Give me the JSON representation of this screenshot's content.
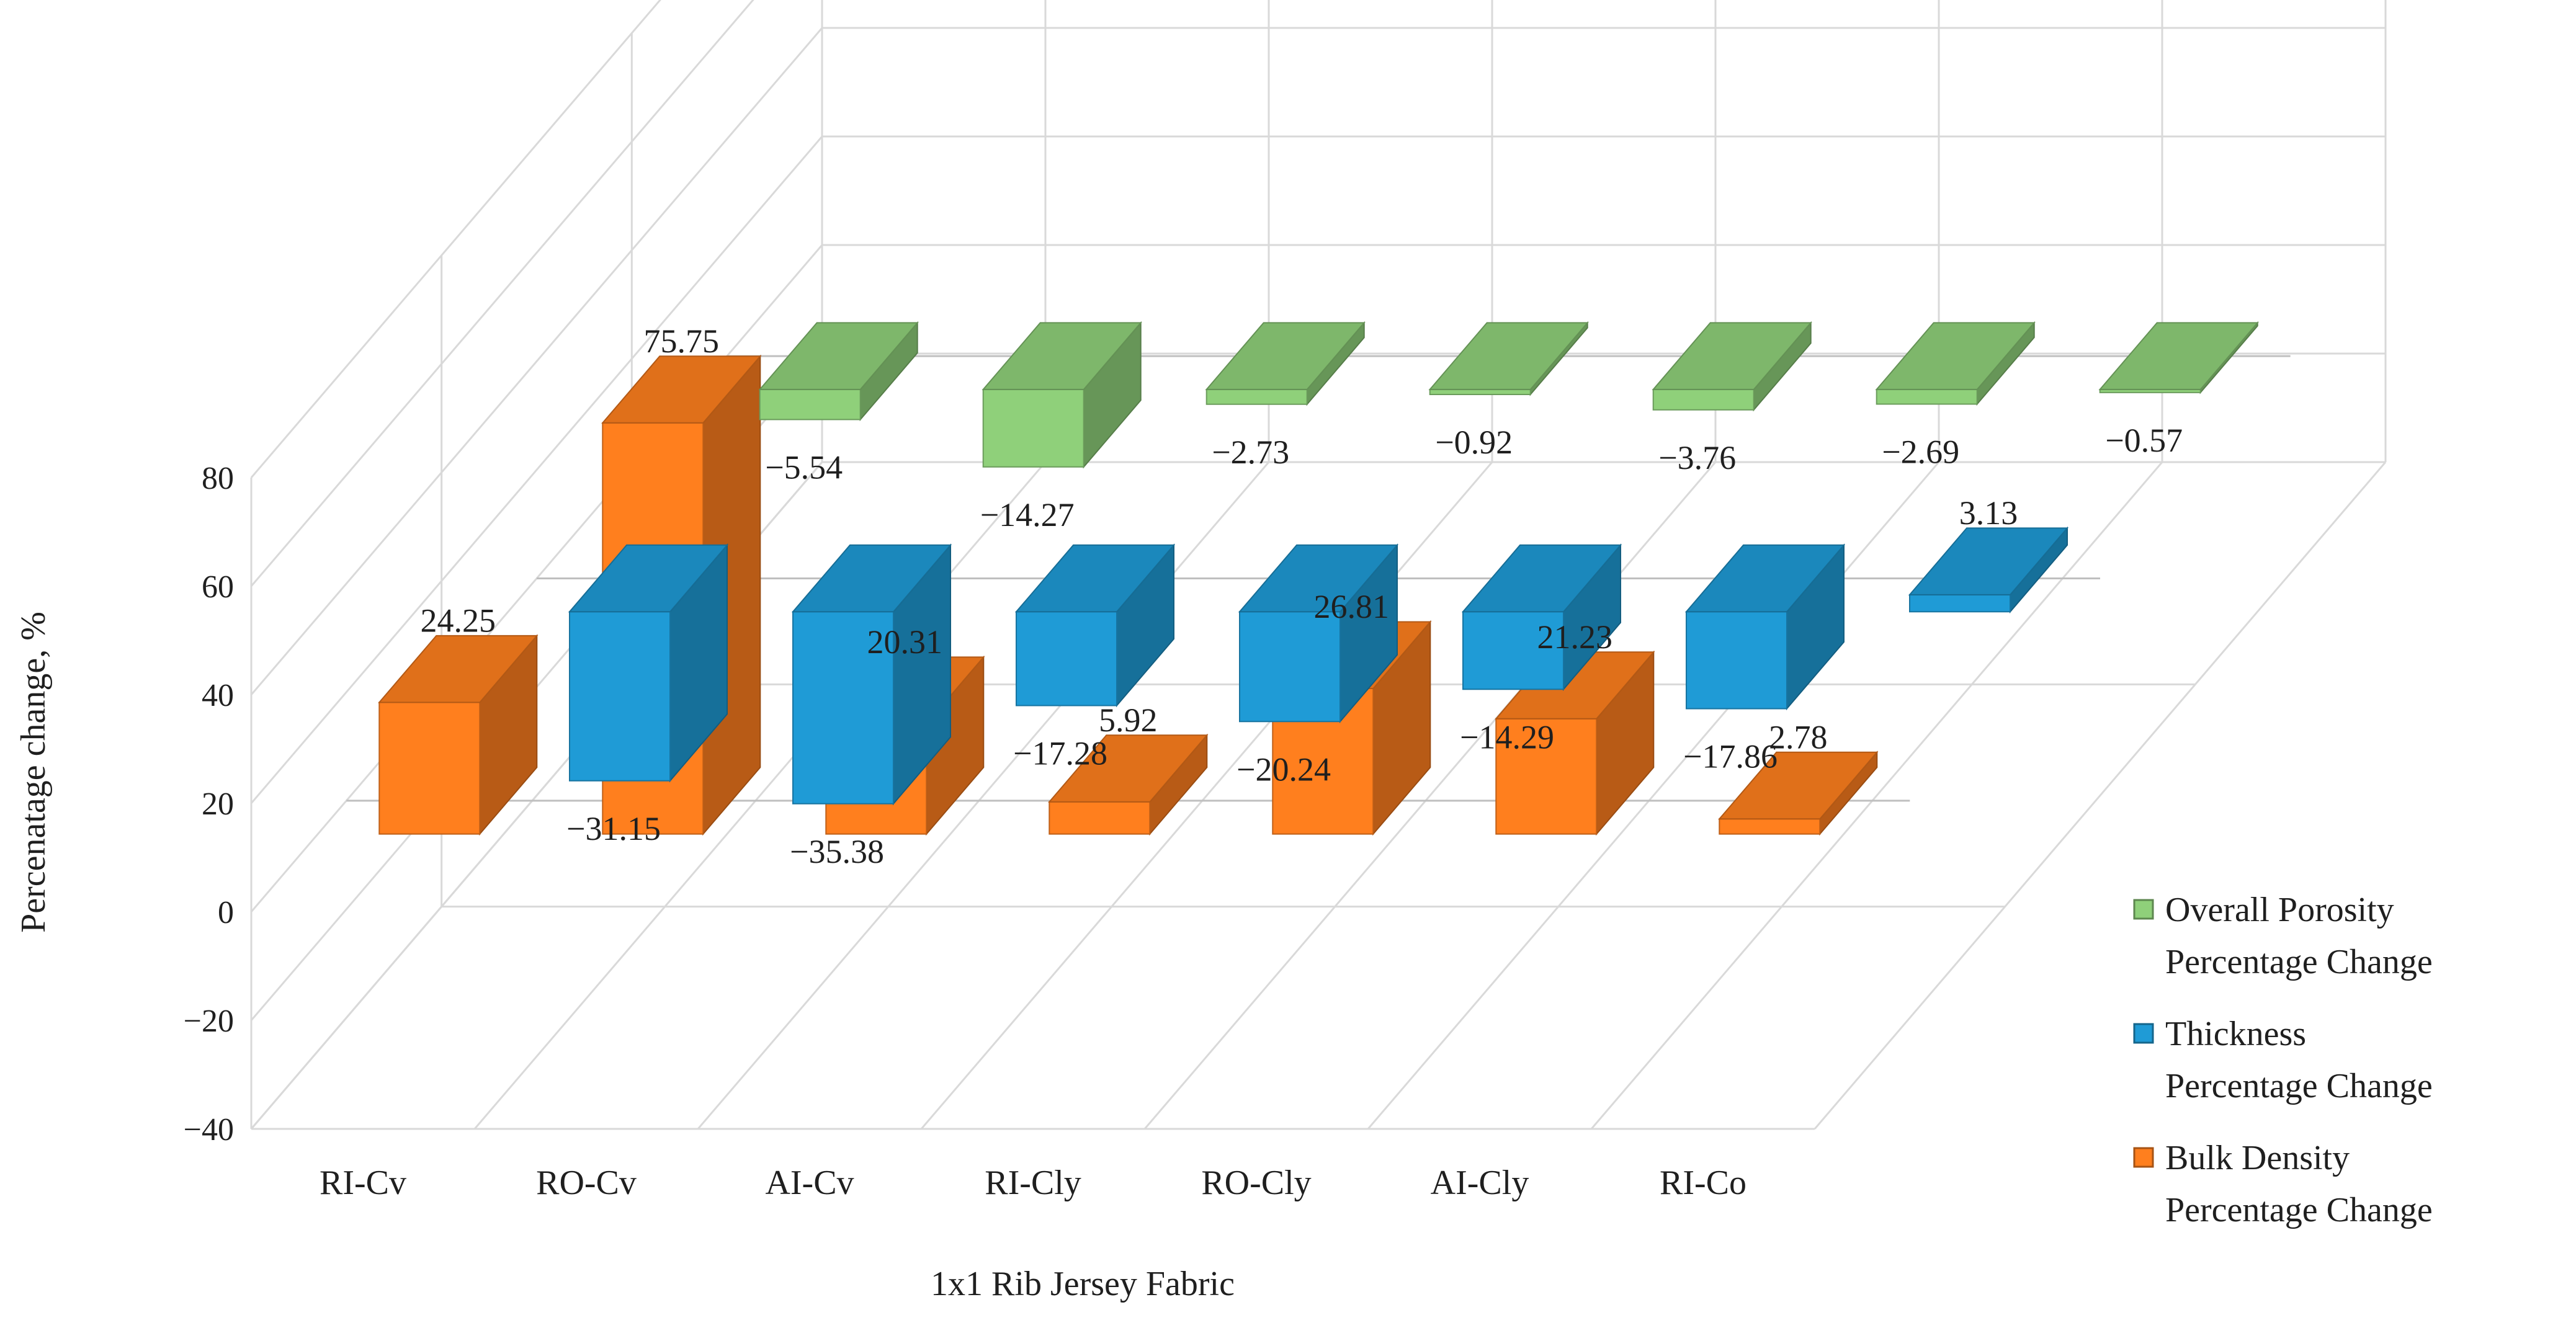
{
  "chart_data": {
    "type": "bar",
    "title": "",
    "xlabel": "1x1 Rib Jersey Fabric",
    "ylabel": "Percenatage change, %",
    "ylim": [
      -40,
      80
    ],
    "yticks": [
      -40,
      -20,
      0,
      20,
      40,
      60,
      80
    ],
    "ytick_labels": [
      "−40",
      "−20",
      "0",
      "20",
      "40",
      "60",
      "80"
    ],
    "categories": [
      "RI-Cv",
      "RO-Cv",
      "AI-Cv",
      "RI-Cly",
      "RO-Cly",
      "AI-Cly",
      "RI-Co"
    ],
    "legend_position": "right",
    "series": [
      {
        "name": "Overall Porosity Percentage Change",
        "color": "#8fd07a",
        "values": [
          -5.54,
          -14.27,
          -2.73,
          -0.92,
          -3.76,
          -2.69,
          -0.57
        ],
        "labels": [
          "−5.54",
          "−14.27",
          "−2.73",
          "−0.92",
          "−3.76",
          "−2.69",
          "−0.57"
        ]
      },
      {
        "name": "Thickness Percentage Change",
        "color": "#1f9bd6",
        "values": [
          -31.15,
          -35.38,
          -17.28,
          -20.24,
          -14.29,
          -17.86,
          3.13
        ],
        "labels": [
          "−31.15",
          "−35.38",
          "−17.28",
          "−20.24",
          "−14.29",
          "−17.86",
          "3.13"
        ]
      },
      {
        "name": "Bulk Density Percentage Change",
        "color": "#ff7f1e",
        "values": [
          24.25,
          75.75,
          20.31,
          5.92,
          26.81,
          21.23,
          2.78
        ],
        "labels": [
          "24.25",
          "75.75",
          "20.31",
          "5.92",
          "26.81",
          "21.23",
          "2.78"
        ]
      }
    ]
  }
}
